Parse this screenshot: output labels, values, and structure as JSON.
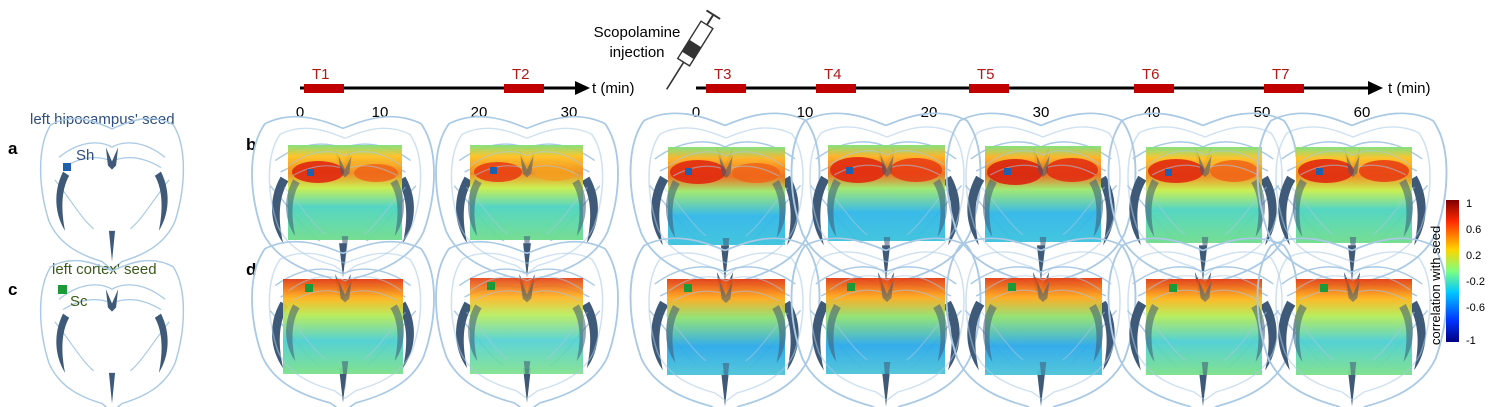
{
  "panel_labels": {
    "a": "a",
    "b": "b",
    "c": "c",
    "d": "d"
  },
  "injection": {
    "line1": "Scopolamine",
    "line2": "injection"
  },
  "timeline_left": {
    "axis_label": "t (min)",
    "ticks": [
      "0",
      "10",
      "20",
      "30"
    ],
    "timepoints": [
      "T1",
      "T2"
    ]
  },
  "timeline_right": {
    "axis_label": "t (min)",
    "ticks": [
      "0",
      "10",
      "20",
      "30",
      "40",
      "50",
      "60"
    ],
    "timepoints": [
      "T3",
      "T4",
      "T5",
      "T6",
      "T7"
    ]
  },
  "seed_hippocampus": {
    "title": "left hipocampus' seed",
    "label": "Sh",
    "color": "#1f5fb0",
    "title_color": "#2f4e7c"
  },
  "seed_cortex": {
    "title": "left cortex' seed",
    "label": "Sc",
    "color": "#1b9a3a",
    "title_color": "#3a5a1a"
  },
  "colorbar": {
    "label": "correlation with seed",
    "ticks": [
      "1",
      "0.6",
      "0.2",
      "-0.2",
      "-0.6",
      "-1"
    ],
    "colors": [
      "#7f0000",
      "#ff2a00",
      "#ffd400",
      "#7fff7f",
      "#00c8ff",
      "#0033ff",
      "#000080"
    ]
  },
  "colors": {
    "timepoint_bar": "#c00000",
    "timepoint_text": "#b01818",
    "atlas_line": "#a9c9e4",
    "ventricle": "#3e5a78"
  }
}
